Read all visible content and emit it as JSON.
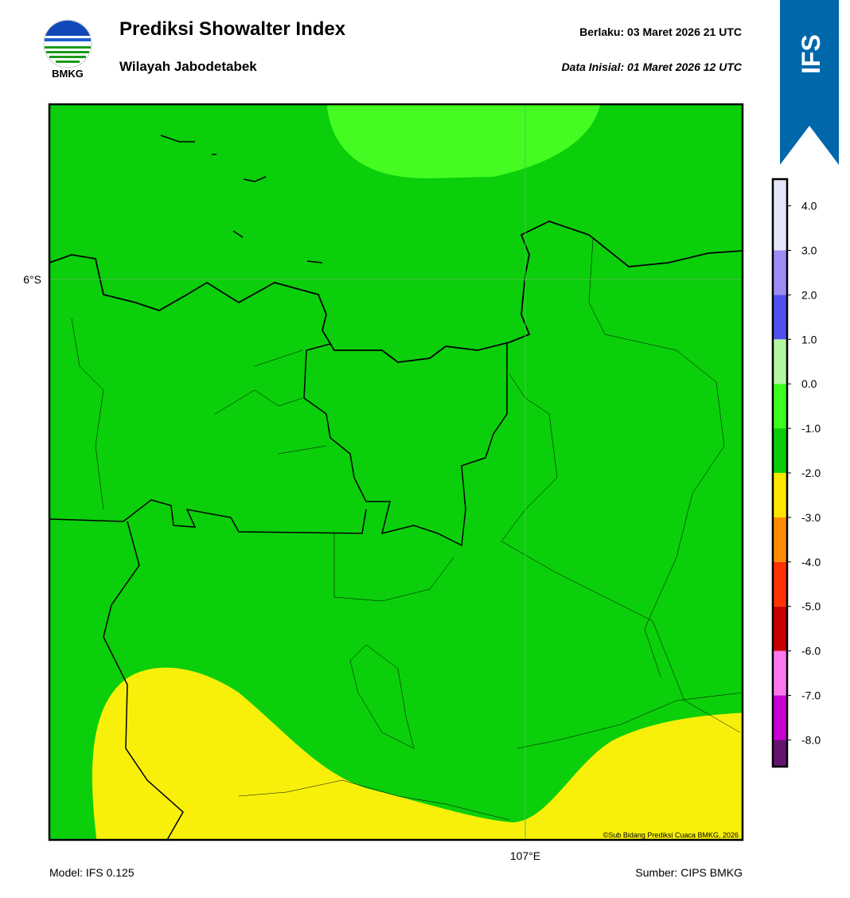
{
  "header": {
    "title": "Prediksi Showalter Index",
    "subtitle": "Wilayah Jabodetabek",
    "valid_label": "Berlaku:  03 Maret 2026 21 UTC",
    "init_label": "Data Inisial:  01 Maret 2026 12 UTC",
    "logo_text": "BMKG",
    "banner": "IFS"
  },
  "map": {
    "lat_label": "6°S",
    "lon_label": "107°E",
    "copyright": "©Sub Bidang Prediksi Cuaca BMKG, 2026"
  },
  "colorbar": {
    "lim": [
      -8.6,
      4.6
    ],
    "levels": [
      -8,
      -7,
      -6,
      -5,
      -4,
      -3,
      -2,
      -1,
      0,
      1,
      2,
      3
    ],
    "colors": [
      "#64146e",
      "#c800d2",
      "#ff78f0",
      "#c80000",
      "#ff3200",
      "#ff8c00",
      "#ffe600",
      "#0acd0a",
      "#3cff1e",
      "#b4f5a0",
      "#5050f0",
      "#9d8cf5",
      "#e6e6fa"
    ],
    "ticks": [
      {
        "value": 4,
        "label": "4.0"
      },
      {
        "value": 3,
        "label": "3.0"
      },
      {
        "value": 2,
        "label": "2.0"
      },
      {
        "value": 1,
        "label": "1.0"
      },
      {
        "value": 0,
        "label": "0.0"
      },
      {
        "value": -1,
        "label": "-1.0"
      },
      {
        "value": -2,
        "label": "-2.0"
      },
      {
        "value": -3,
        "label": "-3.0"
      },
      {
        "value": -4,
        "label": "-4.0"
      },
      {
        "value": -5,
        "label": "-5.0"
      },
      {
        "value": -6,
        "label": "-6.0"
      },
      {
        "value": -7,
        "label": "-7.0"
      },
      {
        "value": -8,
        "label": "-8.0"
      }
    ]
  },
  "footer": {
    "model": "Model: IFS 0.125",
    "source": "Sumber: CIPS BMKG"
  }
}
